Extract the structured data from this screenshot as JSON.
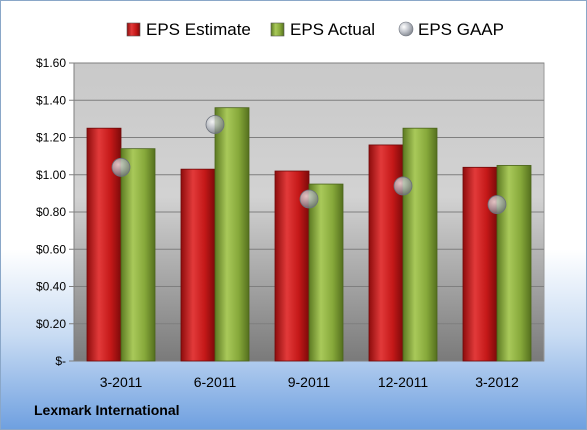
{
  "chart_data": {
    "type": "bar",
    "categories": [
      "3-2011",
      "6-2011",
      "9-2011",
      "12-2011",
      "3-2012"
    ],
    "series": [
      {
        "name": "EPS Estimate",
        "type": "bar",
        "color": "#cc1f1f",
        "values": [
          1.25,
          1.03,
          1.02,
          1.16,
          1.04
        ]
      },
      {
        "name": "EPS Actual",
        "type": "bar",
        "color": "#86a83a",
        "values": [
          1.14,
          1.36,
          0.95,
          1.25,
          1.05
        ]
      },
      {
        "name": "EPS GAAP",
        "type": "scatter",
        "color": "#b8bcc4",
        "values": [
          1.04,
          1.27,
          0.87,
          0.94,
          0.84
        ]
      }
    ],
    "yticks": [
      "$-",
      "$0.20",
      "$0.40",
      "$0.60",
      "$0.80",
      "$1.00",
      "$1.20",
      "$1.40",
      "$1.60"
    ],
    "ylim": [
      0,
      1.6
    ],
    "grid": true,
    "legend_position": "top"
  },
  "footer": {
    "company": "Lexmark International"
  }
}
